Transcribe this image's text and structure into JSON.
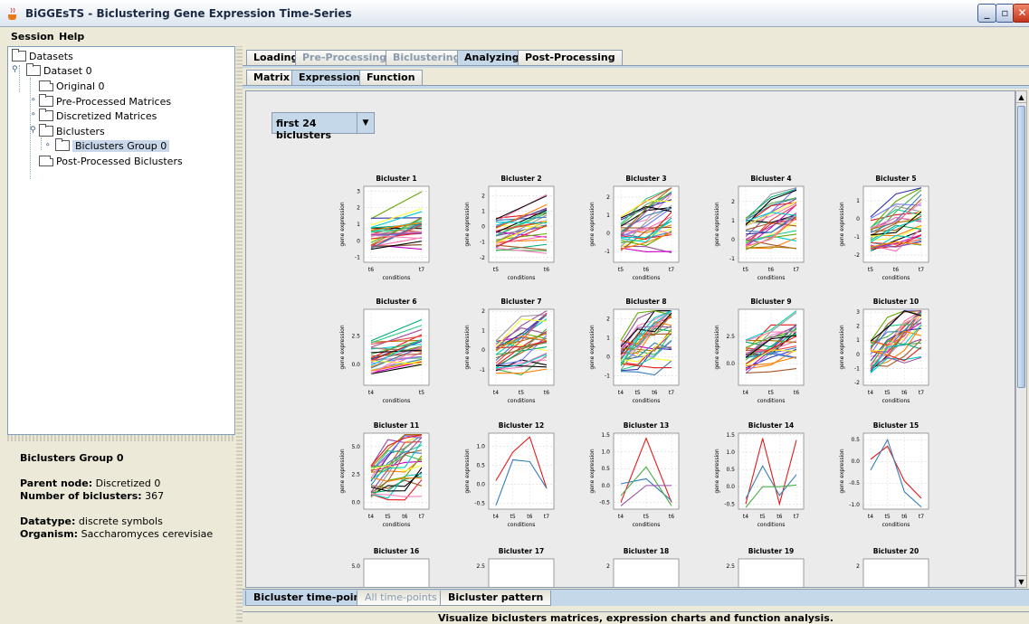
{
  "window": {
    "title": "BiGGEsTS - Biclustering Gene Expression Time-Series",
    "buttons": [
      "_",
      "▫",
      "✕"
    ]
  },
  "menu": [
    "Session",
    "Help"
  ],
  "tree": {
    "root": "Datasets",
    "items": [
      "Dataset 0",
      "Original 0",
      "Pre-Processed Matrices",
      "Discretized Matrices",
      "Biclusters",
      "Biclusters Group 0",
      "Post-Processed Biclusters"
    ]
  },
  "info": {
    "title": "Biclusters Group 0",
    "parent_label": "Parent node:",
    "parent": "Discretized 0",
    "num_label": "Number of biclusters:",
    "num": "367",
    "datatype_label": "Datatype:",
    "datatype": "discrete symbols",
    "organism_label": "Organism:",
    "organism": "Saccharomyces cerevisiae"
  },
  "tabs": {
    "main": [
      "Loading",
      "Pre-Processing",
      "Biclustering",
      "Analyzing",
      "Post-Processing"
    ],
    "main_active": 3,
    "main_dim": [
      1,
      2
    ],
    "sub": [
      "Matrix",
      "Expression",
      "Function"
    ],
    "sub_active": 1,
    "bottom": [
      "Bicluster time-points",
      "All time-points",
      "Bicluster pattern"
    ],
    "bottom_active": 0,
    "bottom_dim": [
      1
    ]
  },
  "dropdown": {
    "selected": "first 24 biclusters",
    "arrow": "▼"
  },
  "scroll": {
    "up": "▲",
    "down": "▼"
  },
  "status": "Visualize biclusters matrices, expression charts and function analysis.",
  "chart_data": [
    {
      "type": "line",
      "title": "Bicluster 1",
      "xlabel": "conditions",
      "ylabel": "gene expression",
      "x": [
        "t6",
        "t7"
      ],
      "yticks": [
        "3",
        "2",
        "1",
        "0",
        "-1"
      ],
      "ylim": [
        -1.3,
        3.3
      ]
    },
    {
      "type": "line",
      "title": "Bicluster 2",
      "xlabel": "conditions",
      "ylabel": "gene expression",
      "x": [
        "t5",
        "t6"
      ],
      "yticks": [
        "2",
        "1",
        "0",
        "-1",
        "-2"
      ],
      "ylim": [
        -2.3,
        2.6
      ]
    },
    {
      "type": "line",
      "title": "Bicluster 3",
      "xlabel": "conditions",
      "ylabel": "gene expression",
      "x": [
        "t5",
        "t6",
        "t7"
      ],
      "yticks": [
        "2",
        "1",
        "0",
        "-1"
      ],
      "ylim": [
        -1.6,
        2.6
      ]
    },
    {
      "type": "line",
      "title": "Bicluster 4",
      "xlabel": "conditions",
      "ylabel": "gene expression",
      "x": [
        "t5",
        "t6",
        "t7"
      ],
      "yticks": [
        "2",
        "1",
        "0",
        "-1"
      ],
      "ylim": [
        -1.2,
        2.8
      ]
    },
    {
      "type": "line",
      "title": "Bicluster 5",
      "xlabel": "conditions",
      "ylabel": "gene expression",
      "x": [
        "t5",
        "t6",
        "t7"
      ],
      "yticks": [
        "1",
        "0",
        "-1",
        "-2"
      ],
      "ylim": [
        -2.4,
        1.8
      ]
    },
    {
      "type": "line",
      "title": "Bicluster 6",
      "xlabel": "conditions",
      "ylabel": "gene expression",
      "x": [
        "t4",
        "t5"
      ],
      "yticks": [
        "2.5",
        "0.0"
      ],
      "ylim": [
        -1.8,
        4.8
      ]
    },
    {
      "type": "line",
      "title": "Bicluster 7",
      "xlabel": "conditions",
      "ylabel": "gene expression",
      "x": [
        "t4",
        "t5",
        "t6"
      ],
      "yticks": [
        "2",
        "1",
        "0",
        "-1"
      ],
      "ylim": [
        -1.8,
        2.1
      ]
    },
    {
      "type": "line",
      "title": "Bicluster 8",
      "xlabel": "conditions",
      "ylabel": "gene expression",
      "x": [
        "t4",
        "t5",
        "t6",
        "t7"
      ],
      "yticks": [
        "2",
        "1",
        "0",
        "-1"
      ],
      "ylim": [
        -1.5,
        2.5
      ]
    },
    {
      "type": "line",
      "title": "Bicluster 9",
      "xlabel": "conditions",
      "ylabel": "gene expression",
      "x": [
        "t4",
        "t5",
        "t6"
      ],
      "yticks": [
        "2.5",
        "0.0"
      ],
      "ylim": [
        -2.0,
        5.0
      ]
    },
    {
      "type": "line",
      "title": "Bicluster 10",
      "xlabel": "conditions",
      "ylabel": "gene expression",
      "x": [
        "t4",
        "t5",
        "t6",
        "t7"
      ],
      "yticks": [
        "3",
        "2",
        "1",
        "0",
        "-1",
        "-2"
      ],
      "ylim": [
        -2.2,
        3.2
      ]
    },
    {
      "type": "line",
      "title": "Bicluster 11",
      "xlabel": "conditions",
      "ylabel": "gene expression",
      "x": [
        "t4",
        "t5",
        "t6",
        "t7"
      ],
      "yticks": [
        "5.0",
        "2.5",
        "0.0"
      ],
      "ylim": [
        -0.6,
        6.2
      ]
    },
    {
      "type": "line",
      "title": "Bicluster 12",
      "xlabel": "conditions",
      "ylabel": "gene expression",
      "x": [
        "t4",
        "t5",
        "t6",
        "t7"
      ],
      "yticks": [
        "1.0",
        "0.5",
        "0.0",
        "-0.5"
      ],
      "ylim": [
        -0.65,
        1.35
      ],
      "series": [
        {
          "values": [
            0.1,
            0.85,
            1.25,
            -0.1
          ]
        },
        {
          "values": [
            -0.55,
            0.65,
            0.6,
            -0.1
          ]
        }
      ]
    },
    {
      "type": "line",
      "title": "Bicluster 13",
      "xlabel": "conditions",
      "ylabel": "gene expression",
      "x": [
        "t4",
        "t5",
        "t6"
      ],
      "yticks": [
        "1.5",
        "1.0",
        "0.5",
        "0.0",
        "-0.5"
      ],
      "ylim": [
        -0.7,
        1.55
      ],
      "series": [
        {
          "values": [
            -0.5,
            1.4,
            -0.5
          ]
        },
        {
          "values": [
            0.05,
            0.2,
            -0.45
          ]
        },
        {
          "values": [
            -0.3,
            0.55,
            -0.6
          ]
        },
        {
          "values": [
            -0.6,
            0.0,
            0.0
          ]
        }
      ]
    },
    {
      "type": "line",
      "title": "Bicluster 14",
      "xlabel": "conditions",
      "ylabel": "gene expression",
      "x": [
        "t4",
        "t5",
        "t6",
        "t7"
      ],
      "yticks": [
        "1.5",
        "1.0",
        "0.5",
        "0.0",
        "-0.5"
      ],
      "ylim": [
        -0.65,
        1.55
      ],
      "series": [
        {
          "values": [
            -0.5,
            1.4,
            -0.5,
            1.35
          ]
        },
        {
          "values": [
            -0.35,
            0.6,
            -0.25,
            0.35
          ]
        },
        {
          "values": [
            -0.6,
            0.0,
            0.0,
            0.05
          ]
        }
      ]
    },
    {
      "type": "line",
      "title": "Bicluster 15",
      "xlabel": "conditions",
      "ylabel": "gene expression",
      "x": [
        "t4",
        "t5",
        "t6",
        "t7"
      ],
      "yticks": [
        "0.5",
        "0.0",
        "-0.5",
        "-1.0"
      ],
      "ylim": [
        -1.1,
        0.65
      ],
      "series": [
        {
          "values": [
            0.05,
            0.35,
            -0.45,
            -0.85
          ]
        },
        {
          "values": [
            -0.2,
            0.5,
            -0.7,
            -1.05
          ]
        }
      ]
    },
    {
      "type": "line",
      "title": "Bicluster 16",
      "yticks": [
        "5.0"
      ]
    },
    {
      "type": "line",
      "title": "Bicluster 17",
      "yticks": [
        "2.5"
      ]
    },
    {
      "type": "line",
      "title": "Bicluster 18",
      "yticks": [
        "2"
      ]
    },
    {
      "type": "line",
      "title": "Bicluster 19",
      "yticks": [
        "2.5"
      ]
    },
    {
      "type": "line",
      "title": "Bicluster 20",
      "yticks": [
        "2"
      ]
    }
  ]
}
